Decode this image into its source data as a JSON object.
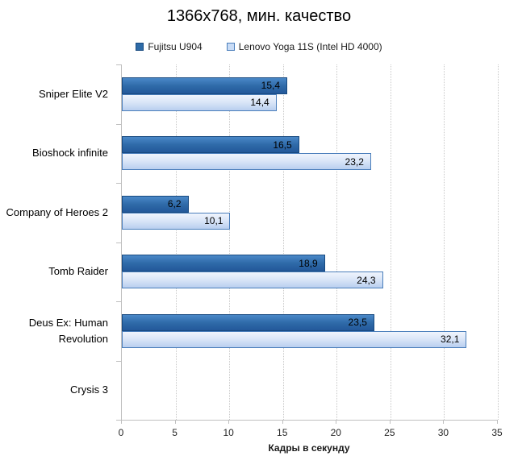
{
  "chart_data": {
    "type": "bar",
    "orientation": "horizontal",
    "title": "1366x768, мин. качество",
    "xlabel": "Кадры в секунду",
    "xlim": [
      0,
      35
    ],
    "xticks": [
      0,
      5,
      10,
      15,
      20,
      25,
      30,
      35
    ],
    "grid": true,
    "legend_position": "top",
    "categories": [
      "Sniper Elite V2",
      "Bioshock infinite",
      "Company of Heroes 2",
      "Tomb Raider",
      "Deus Ex: Human Revolution",
      "Crysis 3"
    ],
    "series": [
      {
        "name": "Fujitsu U904",
        "color": "#2E6BA7",
        "gradient": [
          "#4A88C8",
          "#2F6BA9",
          "#23589A"
        ],
        "border": "#17497F",
        "values": [
          15.4,
          16.5,
          6.2,
          18.9,
          23.5,
          null
        ],
        "labels": [
          "15,4",
          "16,5",
          "6,2",
          "18,9",
          "23,5",
          ""
        ]
      },
      {
        "name": "Lenovo Yoga 11S (Intel HD 4000)",
        "color": "#C9DCF6",
        "gradient": [
          "#F0F5FD",
          "#D8E4F7",
          "#B9CFEF"
        ],
        "border": "#4A7EBB",
        "values": [
          14.4,
          23.2,
          10.1,
          24.3,
          32.1,
          null
        ],
        "labels": [
          "14,4",
          "23,2",
          "10,1",
          "24,3",
          "32,1",
          ""
        ]
      }
    ]
  }
}
